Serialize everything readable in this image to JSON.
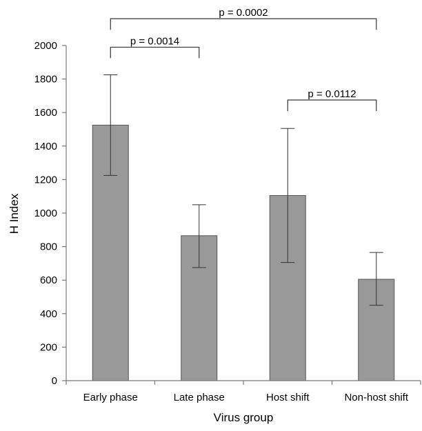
{
  "chart_data": {
    "type": "bar",
    "xlabel": "Virus group",
    "ylabel": "H Index",
    "ylim": [
      0,
      2000
    ],
    "yticks": [
      0,
      200,
      400,
      600,
      800,
      1000,
      1200,
      1400,
      1600,
      1800,
      2000
    ],
    "grid": false,
    "categories": [
      "Early phase",
      "Late phase",
      "Host shift",
      "Non-host shift"
    ],
    "values": [
      1525,
      865,
      1105,
      605
    ],
    "error_low": [
      1225,
      675,
      705,
      450
    ],
    "error_high": [
      1825,
      1050,
      1505,
      765
    ],
    "bar_color": "#999999",
    "significance": [
      {
        "label": "p = 0.0002",
        "from": 0,
        "to": 3,
        "y": 2160
      },
      {
        "label": "p = 0.0014",
        "from": 0,
        "to": 1,
        "y": 1990
      },
      {
        "label": "p = 0.0112",
        "from": 2,
        "to": 3,
        "y": 1675
      }
    ]
  }
}
